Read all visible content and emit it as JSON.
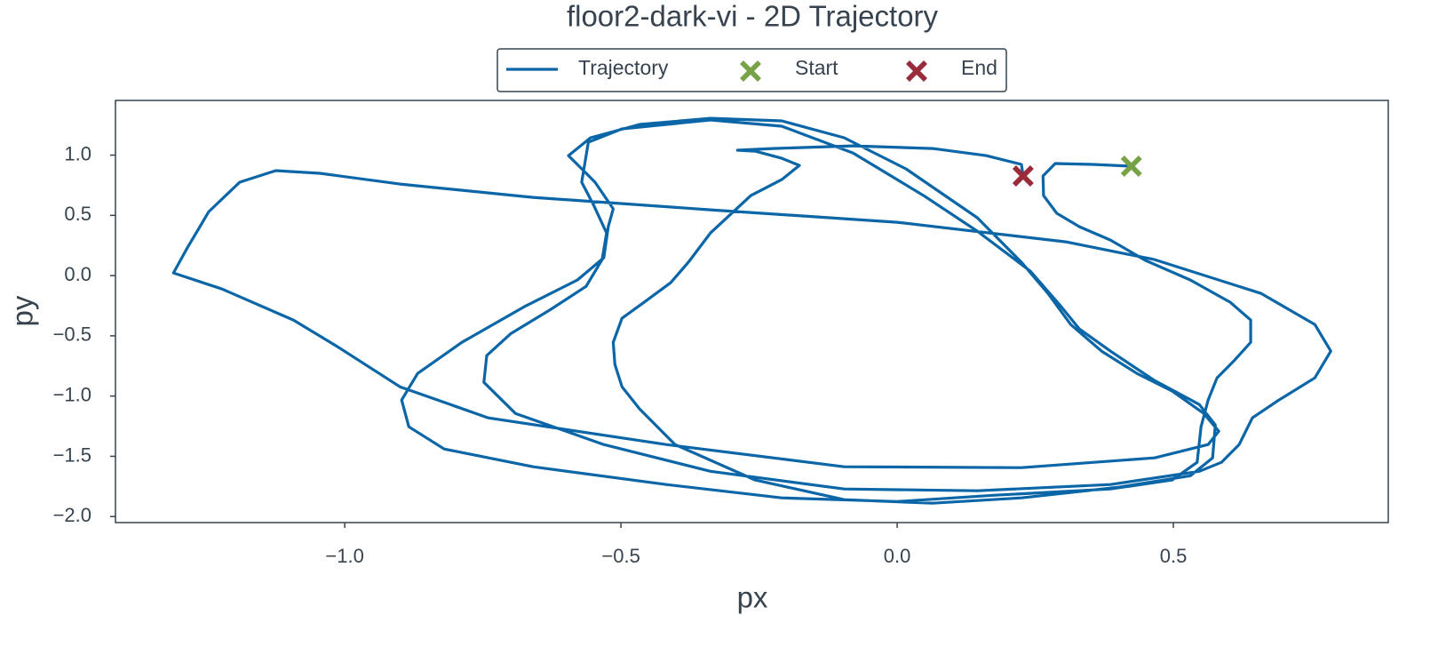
{
  "chart_data": {
    "type": "line",
    "title": "floor2-dark-vi - 2D Trajectory",
    "xlabel": "px",
    "ylabel": "py",
    "xlim": [
      -1.415,
      0.889
    ],
    "ylim": [
      -2.05,
      1.454
    ],
    "xticks": [
      {
        "value": -1.0,
        "label": "−1.0"
      },
      {
        "value": -0.5,
        "label": "−0.5"
      },
      {
        "value": 0.0,
        "label": "0.0"
      },
      0.5
    ],
    "yticks": [
      {
        "value": -2.0,
        "label": "−2.0"
      },
      {
        "value": -1.5,
        "label": "−1.5"
      },
      {
        "value": -1.0,
        "label": "−1.0"
      },
      {
        "value": -0.5,
        "label": "−0.5"
      },
      {
        "value": 0.0,
        "label": "0.0"
      },
      0.5,
      {
        "value": 1.0,
        "label": "1.0"
      }
    ],
    "legend": "top",
    "series": [
      {
        "name": "Trajectory",
        "type": "line",
        "color": "#0b66a8",
        "x": [
          0.424,
          0.354,
          0.286,
          0.264,
          0.265,
          0.289,
          0.33,
          0.386,
          0.45,
          0.531,
          0.603,
          0.64,
          0.64,
          0.611,
          0.579,
          0.563,
          0.55,
          0.543,
          0.498,
          0.386,
          0.177,
          0,
          -0.209,
          -0.418,
          -0.659,
          -0.82,
          -0.884,
          -0.897,
          -0.868,
          -0.788,
          -0.675,
          -0.579,
          -0.531,
          -0.523,
          -0.514,
          -0.547,
          -0.579,
          -0.595,
          -0.555,
          -0.466,
          -0.338,
          -0.209,
          -0.096,
          0.016,
          0.145,
          0.225,
          0.273,
          0.314,
          0.37,
          0.434,
          0.498,
          0.555,
          0.582,
          0.563,
          0.466,
          0.225,
          -0.096,
          -0.418,
          -0.74,
          -0.9,
          -1.013,
          -1.093,
          -1.222,
          -1.31,
          -1.286,
          -1.246,
          -1.19,
          -1.125,
          -1.045,
          -0.9,
          -0.659,
          -0.338,
          0,
          0.305,
          0.466,
          0.659,
          0.756,
          0.785,
          0.756,
          0.691,
          0.643,
          0.619,
          0.587,
          0.547,
          0.386,
          0.145,
          -0.096,
          -0.338,
          -0.531,
          -0.691,
          -0.748,
          -0.743,
          -0.699,
          -0.627,
          -0.563,
          -0.534,
          -0.526,
          -0.55,
          -0.571,
          -0.559,
          -0.498,
          -0.338,
          -0.209,
          -0.08,
          0.048,
          0.145,
          0.241,
          0.297,
          0.33,
          0.386,
          0.466,
          0.547,
          0.576,
          0.571,
          0.531,
          0.402,
          0.225,
          0.064,
          -0.096,
          -0.257,
          -0.402,
          -0.466,
          -0.498,
          -0.511,
          -0.514,
          -0.498,
          -0.458,
          -0.41,
          -0.378,
          -0.338,
          -0.265,
          -0.209,
          -0.177,
          -0.209,
          -0.257,
          -0.289,
          -0.225,
          -0.08,
          0.064,
          0.161,
          0.225,
          0.228
        ],
        "values": [
          0.908,
          0.923,
          0.93,
          0.827,
          0.664,
          0.517,
          0.406,
          0.295,
          0.125,
          -0.037,
          -0.221,
          -0.369,
          -0.554,
          -0.701,
          -0.849,
          -1.033,
          -1.255,
          -1.55,
          -1.697,
          -1.771,
          -1.823,
          -1.875,
          -1.845,
          -1.734,
          -1.587,
          -1.439,
          -1.255,
          -1.033,
          -0.812,
          -0.554,
          -0.258,
          -0.037,
          0.148,
          0.406,
          0.554,
          0.775,
          0.923,
          0.996,
          1.144,
          1.255,
          1.306,
          1.284,
          1.144,
          0.886,
          0.48,
          0.111,
          -0.148,
          -0.406,
          -0.627,
          -0.812,
          -0.959,
          -1.144,
          -1.292,
          -1.402,
          -1.513,
          -1.594,
          -1.587,
          -1.402,
          -1.181,
          -0.923,
          -0.59,
          -0.369,
          -0.111,
          0.022,
          0.221,
          0.531,
          0.775,
          0.871,
          0.849,
          0.76,
          0.649,
          0.546,
          0.443,
          0.28,
          0.133,
          -0.148,
          -0.406,
          -0.627,
          -0.849,
          -1.033,
          -1.181,
          -1.402,
          -1.55,
          -1.624,
          -1.734,
          -1.786,
          -1.771,
          -1.624,
          -1.402,
          -1.144,
          -0.886,
          -0.664,
          -0.48,
          -0.28,
          -0.089,
          0.133,
          0.354,
          0.59,
          0.775,
          1.107,
          1.218,
          1.292,
          1.24,
          1.018,
          0.664,
          0.369,
          0.037,
          -0.258,
          -0.443,
          -0.627,
          -0.871,
          -1.07,
          -1.24,
          -1.513,
          -1.661,
          -1.756,
          -1.845,
          -1.889,
          -1.86,
          -1.697,
          -1.402,
          -1.107,
          -0.923,
          -0.738,
          -0.554,
          -0.354,
          -0.221,
          -0.059,
          0.111,
          0.354,
          0.664,
          0.797,
          0.915,
          0.974,
          1.033,
          1.041,
          1.055,
          1.077,
          1.055,
          0.996,
          0.923,
          0.827
        ]
      },
      {
        "name": "Start",
        "type": "marker",
        "color": "#77a346",
        "x": [
          0.424
        ],
        "values": [
          0.908
        ]
      },
      {
        "name": "End",
        "type": "marker",
        "color": "#9a2b3b",
        "x": [
          0.228
        ],
        "values": [
          0.827
        ]
      }
    ]
  }
}
